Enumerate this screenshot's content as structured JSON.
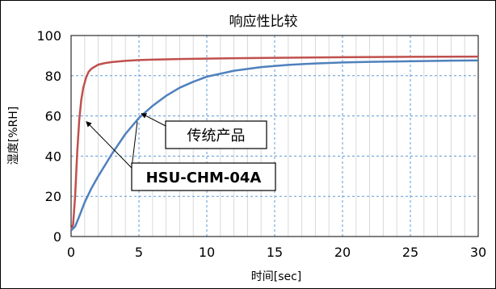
{
  "chart_data": {
    "type": "line",
    "title": "响应性比较",
    "xlabel": "时间[sec]",
    "ylabel": "湿度[%RH]",
    "xlim": [
      0,
      30
    ],
    "ylim": [
      0,
      100
    ],
    "x_ticks": [
      "0",
      "5",
      "10",
      "15",
      "20",
      "25",
      "30"
    ],
    "y_ticks": [
      "0",
      "20",
      "40",
      "60",
      "80",
      "100"
    ],
    "grid": true,
    "series": [
      {
        "name": "HSU-CHM-04A",
        "color": "#c0504d",
        "x": [
          0,
          0.15,
          0.3,
          0.45,
          0.6,
          0.75,
          0.9,
          1.1,
          1.3,
          1.5,
          2,
          2.5,
          3,
          4,
          5,
          6,
          8,
          10,
          12,
          15,
          20,
          25,
          30
        ],
        "y": [
          3,
          6,
          20,
          42,
          58,
          68,
          74,
          79,
          82,
          83.5,
          85.5,
          86.3,
          86.8,
          87.4,
          87.8,
          88,
          88.3,
          88.5,
          88.7,
          88.9,
          89.2,
          89.4,
          89.5
        ]
      },
      {
        "name": "传统产品",
        "color": "#4f81bd",
        "x": [
          0,
          0.3,
          0.6,
          1,
          1.5,
          2,
          3,
          4,
          5,
          6,
          7,
          8,
          9,
          10,
          12,
          14,
          16,
          18,
          20,
          22,
          25,
          28,
          30
        ],
        "y": [
          3,
          5,
          10,
          17,
          24,
          30,
          41,
          51,
          59,
          65,
          70,
          74,
          77,
          79.5,
          82.5,
          84.3,
          85.4,
          86.1,
          86.6,
          86.9,
          87.2,
          87.5,
          87.6
        ]
      }
    ],
    "annotations": [
      {
        "text": "传统产品",
        "series": 1,
        "point_x": 5,
        "point_y": 60
      },
      {
        "text": "HSU-CHM-04A",
        "series": 0,
        "point_x": 1,
        "point_y": 58,
        "second_point_x": 5,
        "second_point_y": 58
      }
    ]
  },
  "colors": {
    "axis": "#000000",
    "major_grid": "#5b9bd5",
    "minor_grid": "#d9d9d9",
    "frame": "#000000"
  }
}
